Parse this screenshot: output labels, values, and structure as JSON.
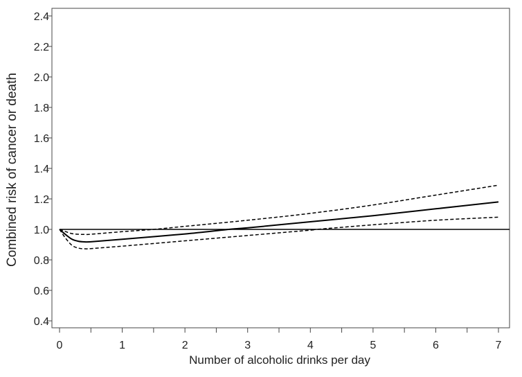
{
  "chart_data": {
    "type": "line",
    "title": "",
    "xlabel": "Number of alcoholic drinks per day",
    "ylabel": "Combined risk of cancer or death",
    "xlim": [
      0,
      7
    ],
    "ylim": [
      0.4,
      2.4
    ],
    "xticks": [
      "0",
      "1",
      "2",
      "3",
      "4",
      "5",
      "6",
      "7"
    ],
    "yticks": [
      "0.4",
      "0.6",
      "0.8",
      "1.0",
      "1.2",
      "1.4",
      "1.6",
      "1.8",
      "2.0",
      "2.2",
      "2.4"
    ],
    "reference_line": 1.0,
    "grid": false,
    "series": [
      {
        "name": "estimate",
        "style": "solid",
        "x": [
          0,
          0.1,
          0.2,
          0.3,
          0.4,
          0.5,
          1,
          2,
          2.7,
          3,
          4,
          5,
          6,
          7
        ],
        "y": [
          1.0,
          0.965,
          0.935,
          0.922,
          0.918,
          0.919,
          0.935,
          0.97,
          1.0,
          1.01,
          1.05,
          1.09,
          1.135,
          1.18
        ]
      },
      {
        "name": "upper confidence limit",
        "style": "dashed",
        "x": [
          0,
          0.1,
          0.2,
          0.3,
          0.4,
          0.5,
          1,
          1.5,
          2,
          3,
          4,
          5,
          6,
          7
        ],
        "y": [
          1.0,
          0.985,
          0.972,
          0.968,
          0.967,
          0.968,
          0.985,
          1.0,
          1.02,
          1.06,
          1.105,
          1.16,
          1.225,
          1.29
        ]
      },
      {
        "name": "lower confidence limit",
        "style": "dashed",
        "x": [
          0,
          0.1,
          0.2,
          0.3,
          0.4,
          0.5,
          1,
          2,
          3,
          4,
          4.1,
          5,
          6,
          7
        ],
        "y": [
          1.0,
          0.94,
          0.895,
          0.877,
          0.873,
          0.874,
          0.89,
          0.925,
          0.96,
          0.995,
          1.0,
          1.03,
          1.06,
          1.08
        ]
      }
    ]
  }
}
